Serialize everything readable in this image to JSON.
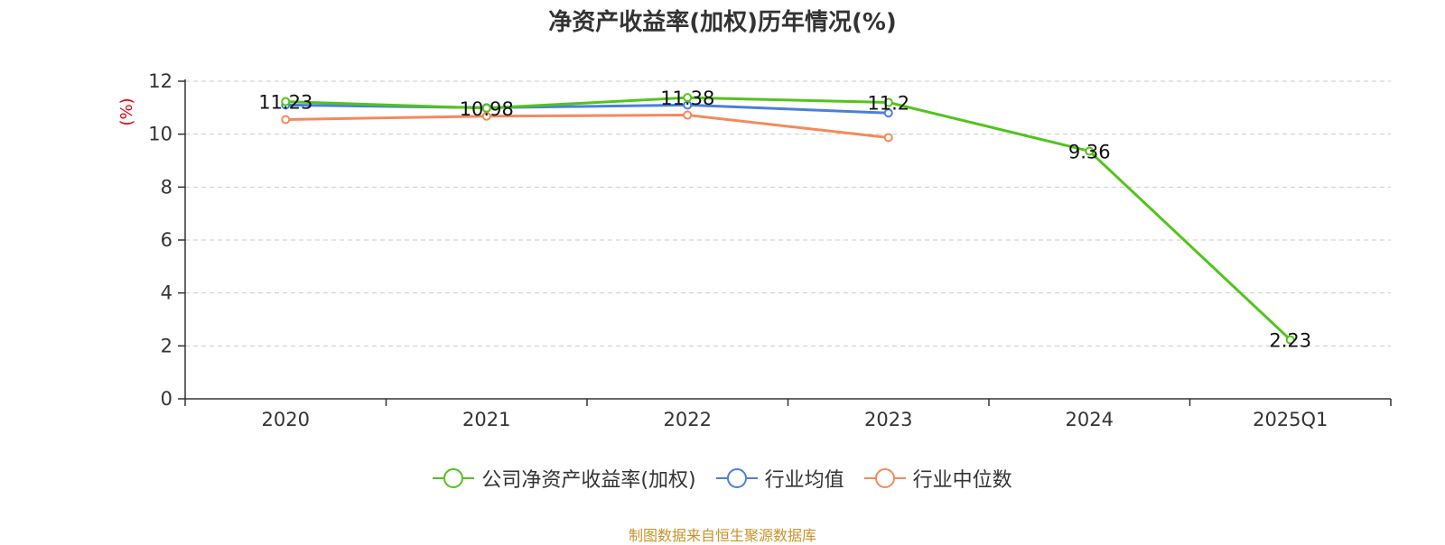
{
  "chart_data": {
    "type": "line",
    "title": "净资产收益率(加权)历年情况(%)",
    "ylabel": "(%)",
    "categories": [
      "2020",
      "2021",
      "2022",
      "2023",
      "2024",
      "2025Q1"
    ],
    "ylim": [
      0,
      12
    ],
    "yticks": [
      0,
      2,
      4,
      6,
      8,
      10,
      12
    ],
    "grid": true,
    "legend_position": "bottom",
    "series": [
      {
        "name": "公司净资产收益率(加权)",
        "color": "#52c41a",
        "values": [
          11.23,
          10.98,
          11.38,
          11.2,
          9.36,
          2.23
        ],
        "labels": [
          "11.23",
          "10.98",
          "11.38",
          "11.2",
          "9.36",
          "2.23"
        ]
      },
      {
        "name": "行业均值",
        "color": "#4a7fdc",
        "values": [
          11.1,
          11.0,
          11.1,
          10.8,
          null,
          null
        ]
      },
      {
        "name": "行业中位数",
        "color": "#f5895a",
        "values": [
          10.55,
          10.68,
          10.72,
          9.87,
          null,
          null
        ]
      }
    ]
  },
  "source_note": "制图数据来自恒生聚源数据库"
}
